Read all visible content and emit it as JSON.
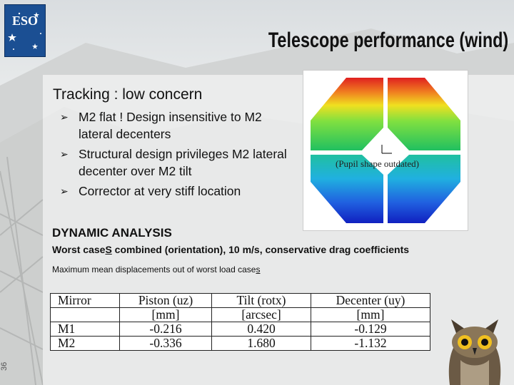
{
  "slide": {
    "title": "Telescope performance (wind)",
    "heading": "Tracking : low concern",
    "bullets": [
      "M2 flat ! Design insensitive to M2 lateral decenters",
      "Structural design privileges M2 lateral decenter over M2 tilt",
      "Corrector at very stiff location"
    ],
    "figure_caption": "(Pupil shape outdated)",
    "dynamic_heading": "DYNAMIC ANALYSIS",
    "worst_case_prefix": "Worst case",
    "worst_case_underlined": "S",
    "worst_case_suffix": " combined (orientation), 10 m/s, conservative drag coefficients",
    "max_disp_prefix": "Maximum mean displacements out of worst load case",
    "max_disp_underlined": "s",
    "page_number": "36",
    "logo_text": "ESO"
  },
  "table": {
    "header": [
      "Mirror",
      "Piston (uz)",
      "Tilt (rotx)",
      "Decenter (uy)"
    ],
    "units": [
      "",
      "[mm]",
      "[arcsec]",
      "[mm]"
    ],
    "rows": [
      [
        "M1",
        "-0.216",
        "0.420",
        "-0.129"
      ],
      [
        "M2",
        "-0.336",
        "1.680",
        "-1.132"
      ]
    ]
  },
  "colors": {
    "logo_blue": "#1b4f93"
  }
}
